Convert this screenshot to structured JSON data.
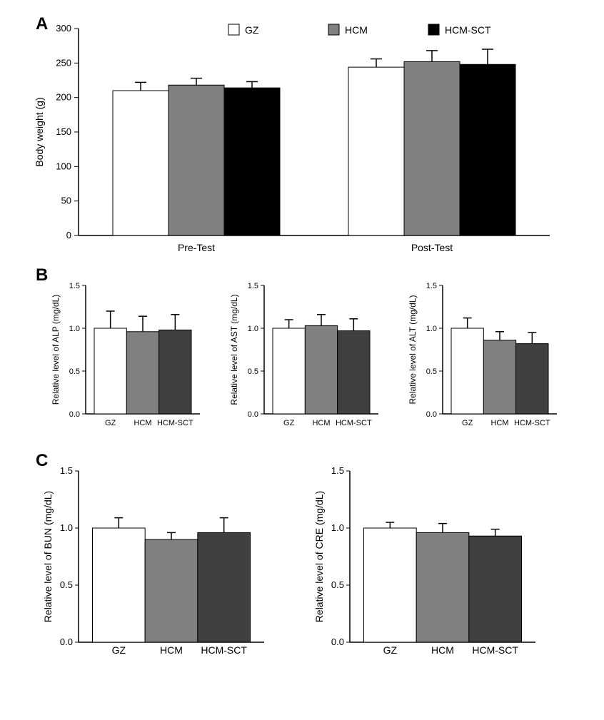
{
  "colors": {
    "GZ": "#ffffff",
    "HCM": "#808080",
    "HCM-SCT": "#000000",
    "HCM-SCT_dark": "#404040",
    "axis": "#000000",
    "bg": "#ffffff"
  },
  "fonts": {
    "panel_label_pt": 24,
    "panel_label_weight": "bold",
    "axis_title_pt": 14,
    "tick_pt": 13,
    "small_tick_pt": 11
  },
  "panelA": {
    "label": "A",
    "type": "grouped-bar",
    "y_title": "Body weight (g)",
    "ylim": [
      0,
      300
    ],
    "ytick_step": 50,
    "legend": [
      {
        "label": "GZ",
        "fill": "#ffffff"
      },
      {
        "label": "HCM",
        "fill": "#808080"
      },
      {
        "label": "HCM-SCT",
        "fill": "#000000"
      }
    ],
    "groups": [
      {
        "name": "Pre-Test",
        "bars": [
          {
            "series": "GZ",
            "value": 210,
            "err": 12,
            "fill": "#ffffff"
          },
          {
            "series": "HCM",
            "value": 218,
            "err": 10,
            "fill": "#808080"
          },
          {
            "series": "HCM-SCT",
            "value": 214,
            "err": 9,
            "fill": "#000000"
          }
        ]
      },
      {
        "name": "Post-Test",
        "bars": [
          {
            "series": "GZ",
            "value": 244,
            "err": 12,
            "fill": "#ffffff"
          },
          {
            "series": "HCM",
            "value": 252,
            "err": 16,
            "fill": "#808080"
          },
          {
            "series": "HCM-SCT",
            "value": 248,
            "err": 22,
            "fill": "#000000"
          }
        ]
      }
    ]
  },
  "panelB": {
    "label": "B",
    "type": "bar-row",
    "ylim": [
      0,
      1.5
    ],
    "ytick_step": 0.5,
    "categories": [
      "GZ",
      "HCM",
      "HCM-SCT"
    ],
    "charts": [
      {
        "y_title": "Relative level of ALP (mg/dL)",
        "bars": [
          {
            "value": 1.0,
            "err": 0.2,
            "fill": "#ffffff"
          },
          {
            "value": 0.96,
            "err": 0.18,
            "fill": "#808080"
          },
          {
            "value": 0.98,
            "err": 0.18,
            "fill": "#404040"
          }
        ]
      },
      {
        "y_title": "Relative level of AST (mg/dL)",
        "bars": [
          {
            "value": 1.0,
            "err": 0.1,
            "fill": "#ffffff"
          },
          {
            "value": 1.03,
            "err": 0.13,
            "fill": "#808080"
          },
          {
            "value": 0.97,
            "err": 0.14,
            "fill": "#404040"
          }
        ]
      },
      {
        "y_title": "Relative level of ALT (mg/dL)",
        "bars": [
          {
            "value": 1.0,
            "err": 0.12,
            "fill": "#ffffff"
          },
          {
            "value": 0.86,
            "err": 0.1,
            "fill": "#808080"
          },
          {
            "value": 0.82,
            "err": 0.13,
            "fill": "#404040"
          }
        ]
      }
    ]
  },
  "panelC": {
    "label": "C",
    "type": "bar-row",
    "ylim": [
      0,
      1.5
    ],
    "ytick_step": 0.5,
    "categories": [
      "GZ",
      "HCM",
      "HCM-SCT"
    ],
    "charts": [
      {
        "y_title": "Relative level of BUN (mg/dL)",
        "bars": [
          {
            "value": 1.0,
            "err": 0.09,
            "fill": "#ffffff"
          },
          {
            "value": 0.9,
            "err": 0.06,
            "fill": "#808080"
          },
          {
            "value": 0.96,
            "err": 0.13,
            "fill": "#404040"
          }
        ]
      },
      {
        "y_title": "Relative level of CRE (mg/dL)",
        "bars": [
          {
            "value": 1.0,
            "err": 0.05,
            "fill": "#ffffff"
          },
          {
            "value": 0.96,
            "err": 0.08,
            "fill": "#808080"
          },
          {
            "value": 0.93,
            "err": 0.06,
            "fill": "#404040"
          }
        ]
      }
    ]
  }
}
